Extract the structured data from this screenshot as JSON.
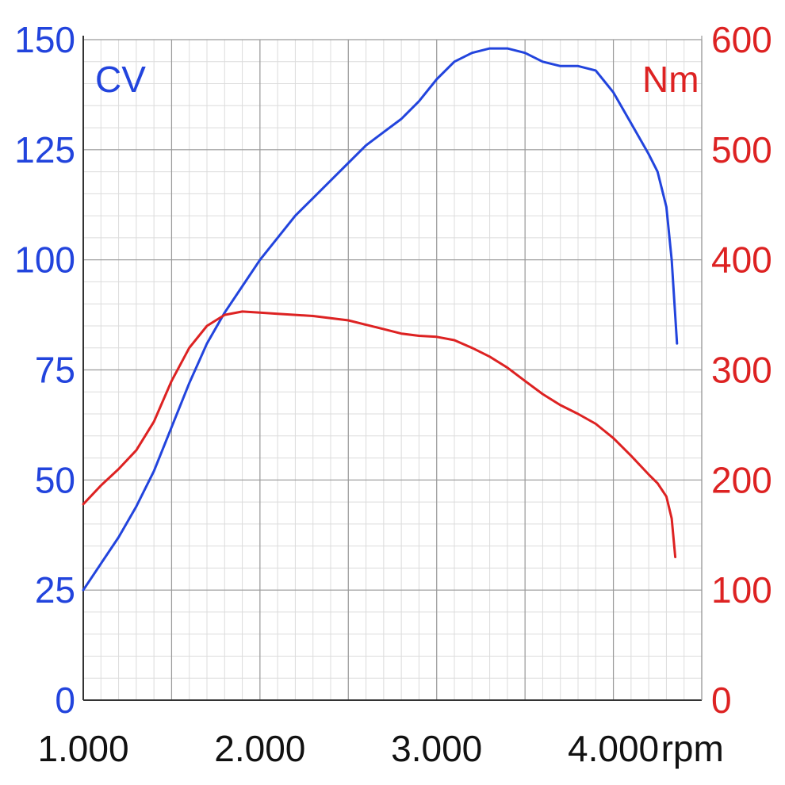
{
  "chart_data": {
    "type": "line",
    "x_unit_label": "rpm",
    "x_ticks": [
      "1.000",
      "2.000",
      "3.000",
      "4.000"
    ],
    "x_tick_values": [
      1000,
      2000,
      3000,
      4000
    ],
    "xlim": [
      1000,
      4500
    ],
    "left_axis": {
      "label": "CV",
      "ticks": [
        "0",
        "25",
        "50",
        "75",
        "100",
        "125",
        "150"
      ],
      "tick_values": [
        0,
        25,
        50,
        75,
        100,
        125,
        150
      ],
      "ylim": [
        0,
        150
      ]
    },
    "right_axis": {
      "label": "Nm",
      "ticks": [
        "0",
        "100",
        "200",
        "300",
        "400",
        "500",
        "600"
      ],
      "tick_values": [
        0,
        100,
        200,
        300,
        400,
        500,
        600
      ],
      "ylim": [
        0,
        600
      ]
    },
    "grid": true,
    "series": [
      {
        "axis": "left",
        "color": "#2244dd",
        "x": [
          1000,
          1100,
          1200,
          1300,
          1400,
          1500,
          1600,
          1700,
          1800,
          1900,
          2000,
          2100,
          2200,
          2300,
          2400,
          2500,
          2600,
          2700,
          2800,
          2900,
          3000,
          3100,
          3200,
          3300,
          3400,
          3500,
          3600,
          3700,
          3800,
          3900,
          4000,
          4100,
          4200,
          4250,
          4300,
          4330,
          4360
        ],
        "values": [
          25,
          31,
          37,
          44,
          52,
          62,
          72,
          81,
          88,
          94,
          100,
          105,
          110,
          114,
          118,
          122,
          126,
          129,
          132,
          136,
          141,
          145,
          147,
          148,
          148,
          147,
          145,
          144,
          144,
          143,
          138,
          131,
          124,
          120,
          112,
          100,
          81
        ]
      },
      {
        "axis": "right",
        "color": "#dd2222",
        "x": [
          1000,
          1100,
          1200,
          1300,
          1400,
          1500,
          1600,
          1700,
          1800,
          1900,
          2000,
          2100,
          2200,
          2300,
          2400,
          2500,
          2600,
          2700,
          2800,
          2900,
          3000,
          3100,
          3200,
          3300,
          3400,
          3500,
          3600,
          3700,
          3800,
          3900,
          4000,
          4100,
          4200,
          4250,
          4300,
          4330,
          4350
        ],
        "values": [
          178,
          195,
          210,
          227,
          253,
          290,
          320,
          340,
          350,
          353,
          352,
          351,
          350,
          349,
          347,
          345,
          341,
          337,
          333,
          331,
          330,
          327,
          320,
          312,
          302,
          290,
          278,
          268,
          260,
          251,
          238,
          222,
          205,
          197,
          185,
          165,
          130
        ]
      }
    ]
  }
}
